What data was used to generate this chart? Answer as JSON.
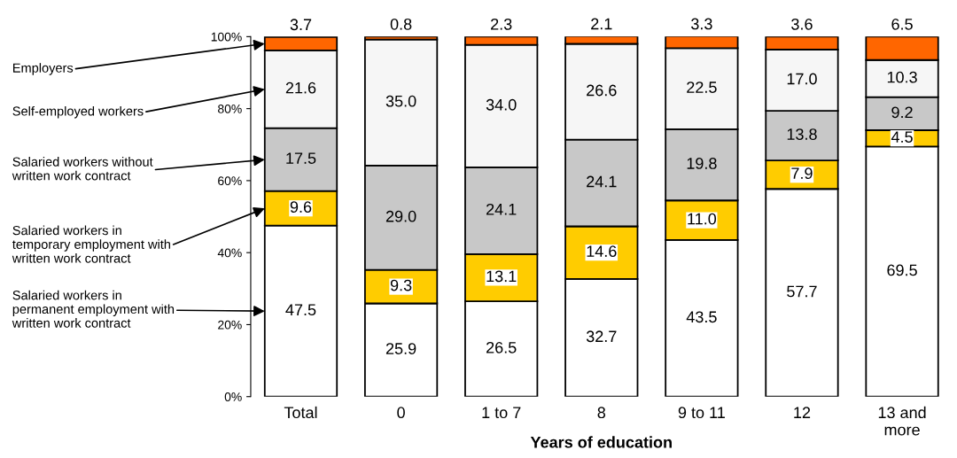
{
  "chart_data": {
    "type": "bar",
    "stacked": true,
    "xlabel": "Years of education",
    "categories": [
      "Total",
      "0",
      "1 to 7",
      "8",
      "9 to 11",
      "12",
      "13 and more"
    ],
    "series": [
      {
        "name": "Salaried workers in permanent employment with written work contract",
        "color": "#ffffff",
        "values": [
          47.5,
          25.9,
          26.5,
          32.7,
          43.5,
          57.7,
          69.5
        ],
        "value_labels": [
          "47.5",
          "25.9",
          "26.5",
          "32.7",
          "43.5",
          "57.7",
          "69.5"
        ]
      },
      {
        "name": "Salaried workers in temporary employment with written work contract",
        "color": "#ffcc00",
        "values": [
          9.6,
          9.3,
          13.1,
          14.6,
          11.0,
          7.9,
          4.5
        ],
        "value_labels": [
          "9.6",
          "9.3",
          "13.1",
          "14.6",
          "11.0",
          "7.9",
          "4.5"
        ]
      },
      {
        "name": "Salaried workers without written work contract",
        "color": "#c8c8c8",
        "values": [
          17.5,
          29.0,
          24.1,
          24.1,
          19.8,
          13.8,
          9.2
        ],
        "value_labels": [
          "17.5",
          "29.0",
          "24.1",
          "24.1",
          "19.8",
          "13.8",
          "9.2"
        ]
      },
      {
        "name": "Self-employed workers",
        "color": "#f6f6f6",
        "values": [
          21.6,
          35.0,
          34.0,
          26.6,
          22.5,
          17.0,
          10.3
        ],
        "value_labels": [
          "21.6",
          "35.0",
          "34.0",
          "26.6",
          "22.5",
          "17.0",
          "10.3"
        ]
      },
      {
        "name": "Employers",
        "color": "#ff6600",
        "values": [
          3.7,
          0.8,
          2.3,
          2.1,
          3.3,
          3.6,
          6.5
        ],
        "value_labels": [
          "3.7",
          "0.8",
          "2.3",
          "2.1",
          "3.3",
          "3.6",
          "6.5"
        ]
      }
    ],
    "ylim": [
      0,
      100
    ],
    "yticks": [
      {
        "value": 0,
        "label": "0%"
      },
      {
        "value": 20,
        "label": "20%"
      },
      {
        "value": 40,
        "label": "40%"
      },
      {
        "value": 60,
        "label": "60%"
      },
      {
        "value": 80,
        "label": "80%"
      },
      {
        "value": 100,
        "label": "100%"
      }
    ],
    "grid": false,
    "legend": "left"
  }
}
